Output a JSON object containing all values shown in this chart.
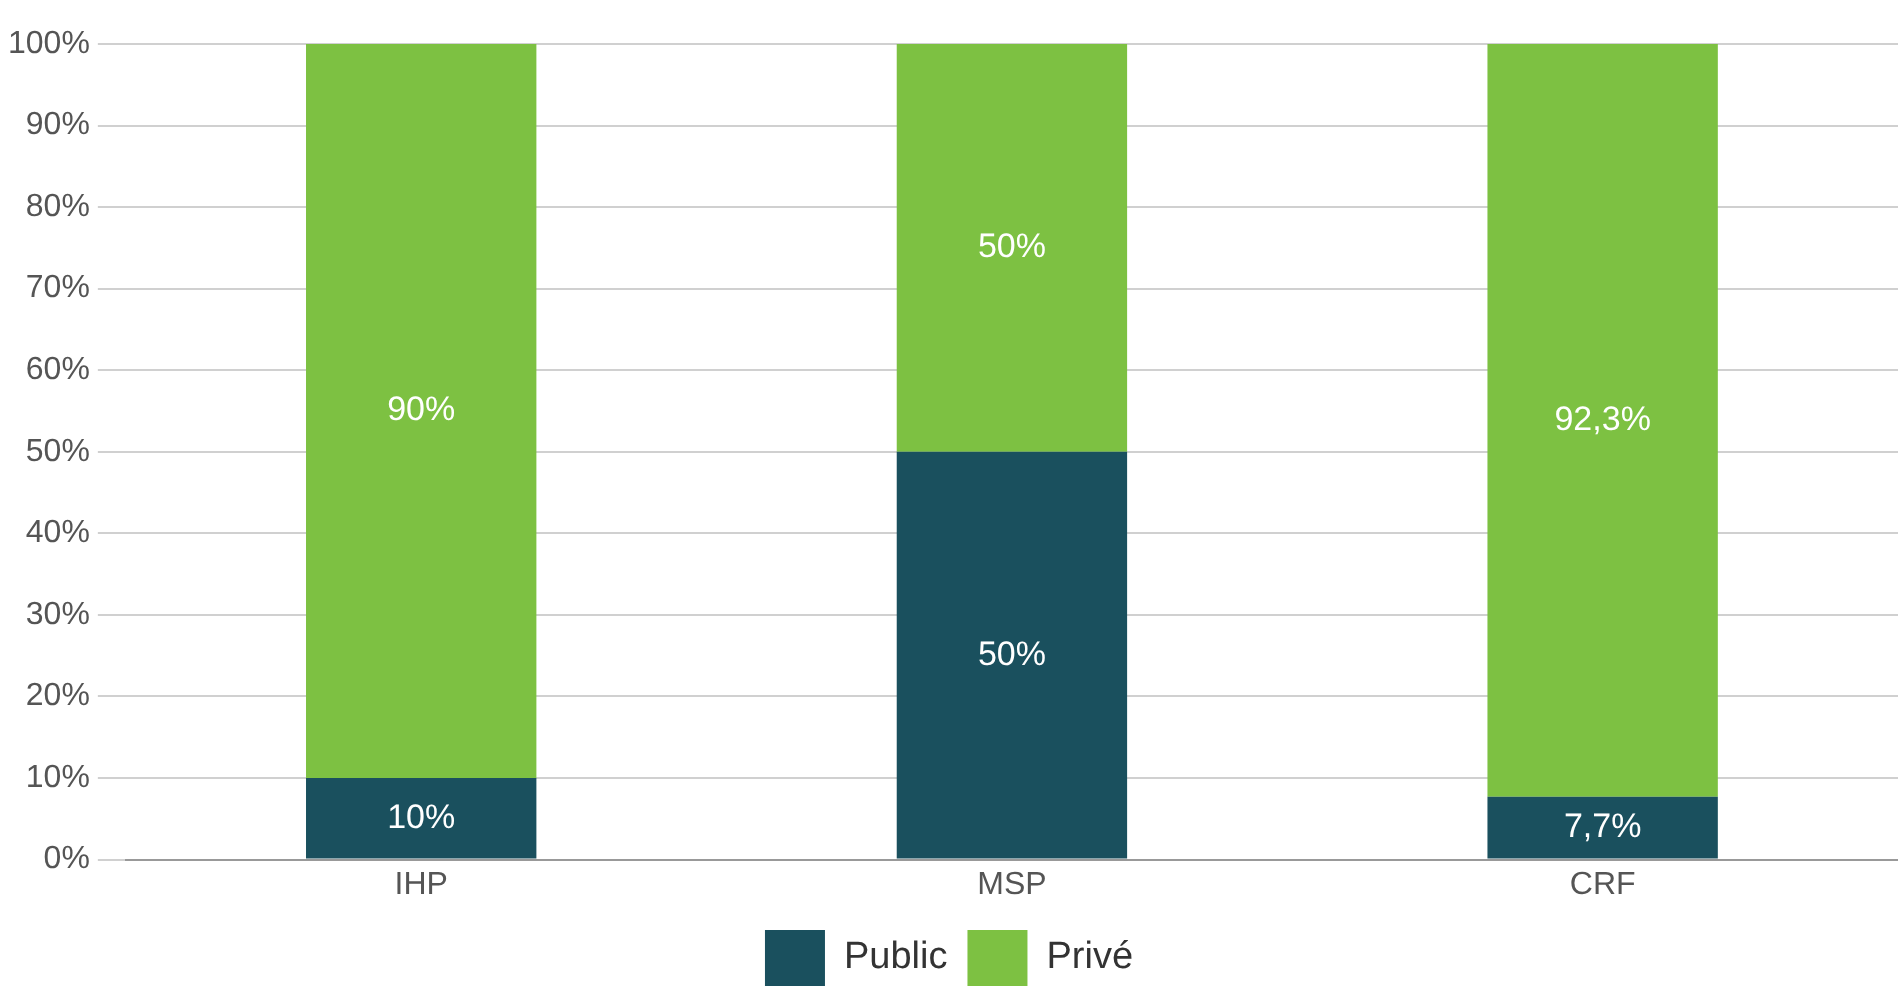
{
  "chart_data": {
    "type": "bar",
    "stacked": true,
    "categories": [
      "IHP",
      "MSP",
      "CRF"
    ],
    "series": [
      {
        "name": "Public",
        "color": "#1a505e",
        "values": [
          10,
          50,
          7.7
        ],
        "value_labels": [
          "10%",
          "50%",
          "7,7%"
        ]
      },
      {
        "name": "Privé",
        "color": "#7dc142",
        "values": [
          90,
          50,
          92.3
        ],
        "value_labels": [
          "90%",
          "50%",
          "92,3%"
        ]
      }
    ],
    "ylim": [
      0,
      100
    ],
    "yticks": [
      {
        "value": 0,
        "label": "0%"
      },
      {
        "value": 10,
        "label": "10%"
      },
      {
        "value": 20,
        "label": "20%"
      },
      {
        "value": 30,
        "label": "30%"
      },
      {
        "value": 40,
        "label": "40%"
      },
      {
        "value": 50,
        "label": "50%"
      },
      {
        "value": 60,
        "label": "60%"
      },
      {
        "value": 70,
        "label": "70%"
      },
      {
        "value": 80,
        "label": "80%"
      },
      {
        "value": 90,
        "label": "90%"
      },
      {
        "value": 100,
        "label": "100%"
      }
    ],
    "grid": "y",
    "legend": "bottom"
  }
}
